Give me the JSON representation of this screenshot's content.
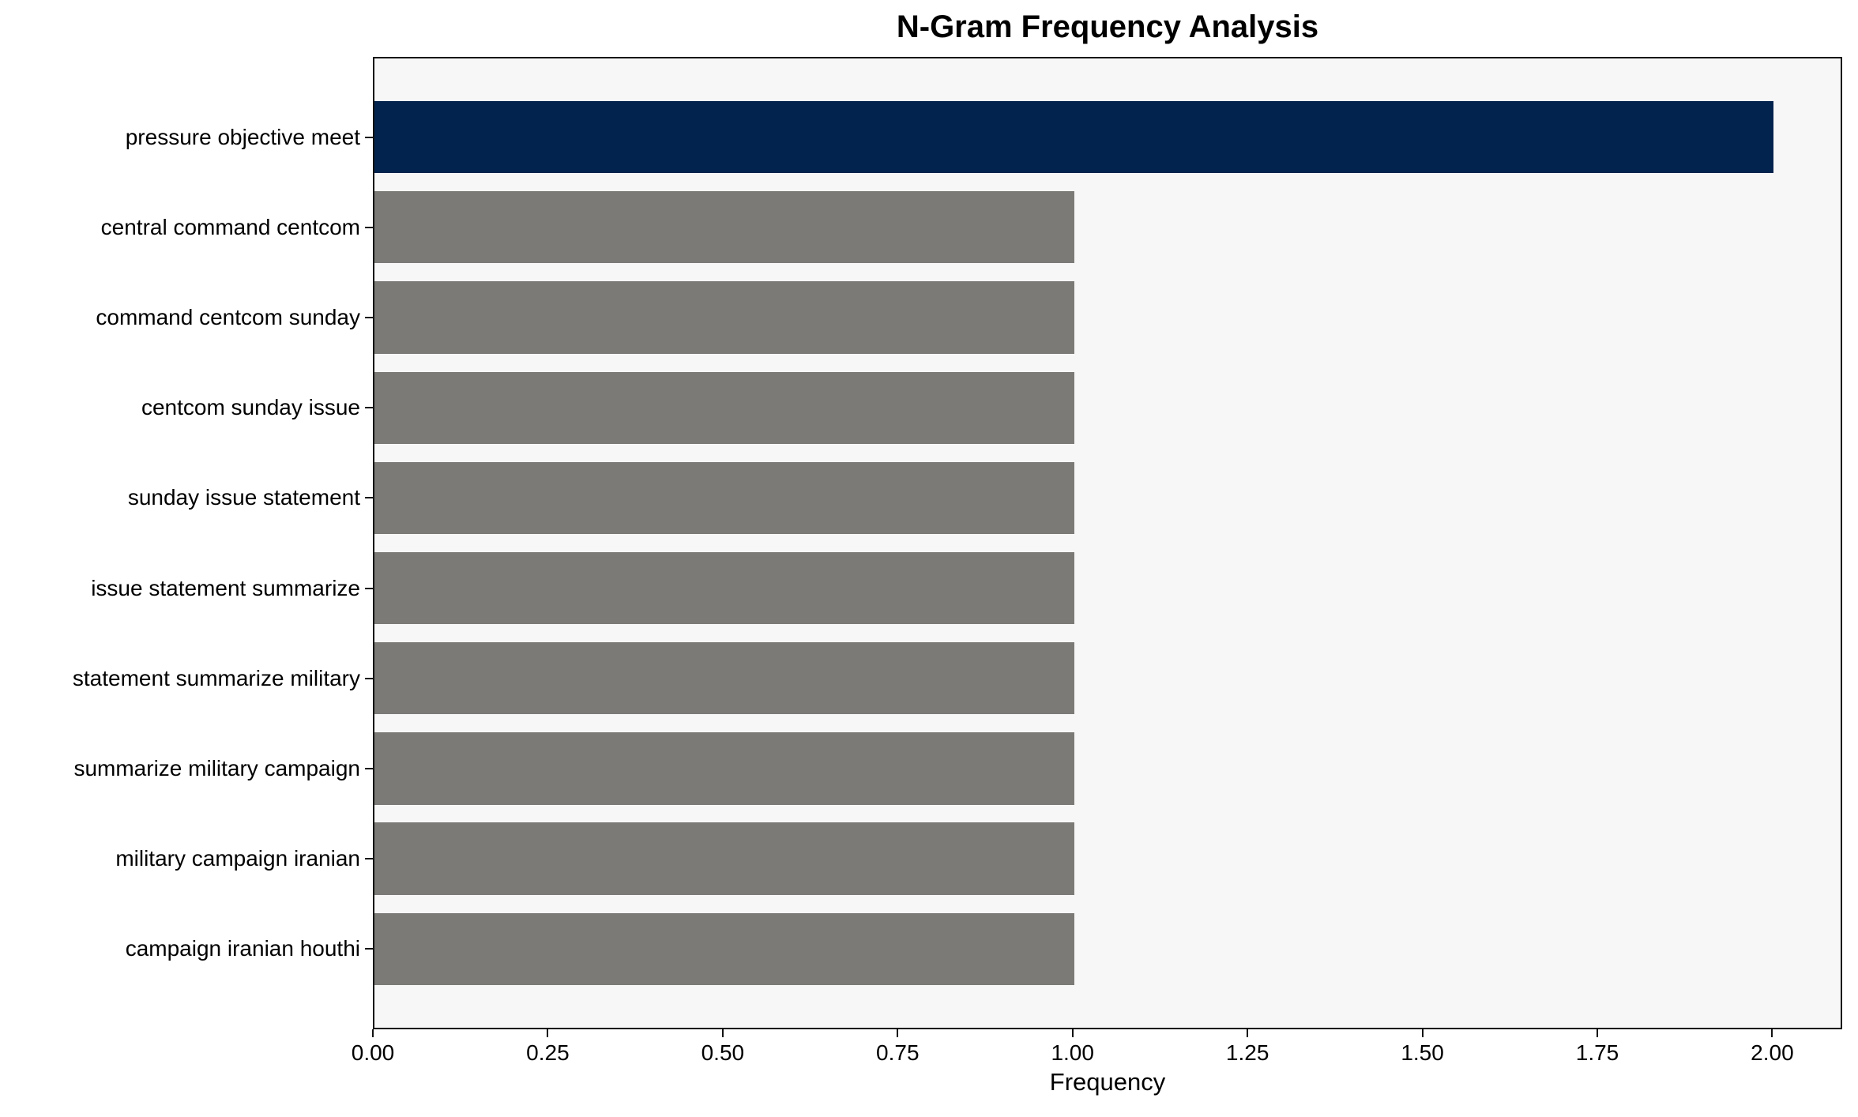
{
  "chart_data": {
    "type": "bar",
    "orientation": "horizontal",
    "title": "N-Gram Frequency Analysis",
    "xlabel": "Frequency",
    "ylabel": "",
    "categories": [
      "pressure objective meet",
      "central command centcom",
      "command centcom sunday",
      "centcom sunday issue",
      "sunday issue statement",
      "issue statement summarize",
      "statement summarize military",
      "summarize military campaign",
      "military campaign iranian",
      "campaign iranian houthi"
    ],
    "values": [
      2,
      1,
      1,
      1,
      1,
      1,
      1,
      1,
      1,
      1
    ],
    "xlim": [
      0,
      2.1
    ],
    "xtick_values": [
      0,
      0.25,
      0.5,
      0.75,
      1.0,
      1.25,
      1.5,
      1.75,
      2.0
    ],
    "xtick_labels": [
      "0.00",
      "0.25",
      "0.50",
      "0.75",
      "1.00",
      "1.25",
      "1.50",
      "1.75",
      "2.00"
    ],
    "highlight_index": 0,
    "colors": {
      "highlight_bar": "#02234d",
      "default_bar": "#7b7a76",
      "plot_background": "#f8f7f7",
      "figure_background": "#ffffff",
      "axis": "#111111",
      "text": "#000000"
    },
    "grid": false,
    "legend": null,
    "bar_height_fraction": 0.8
  }
}
